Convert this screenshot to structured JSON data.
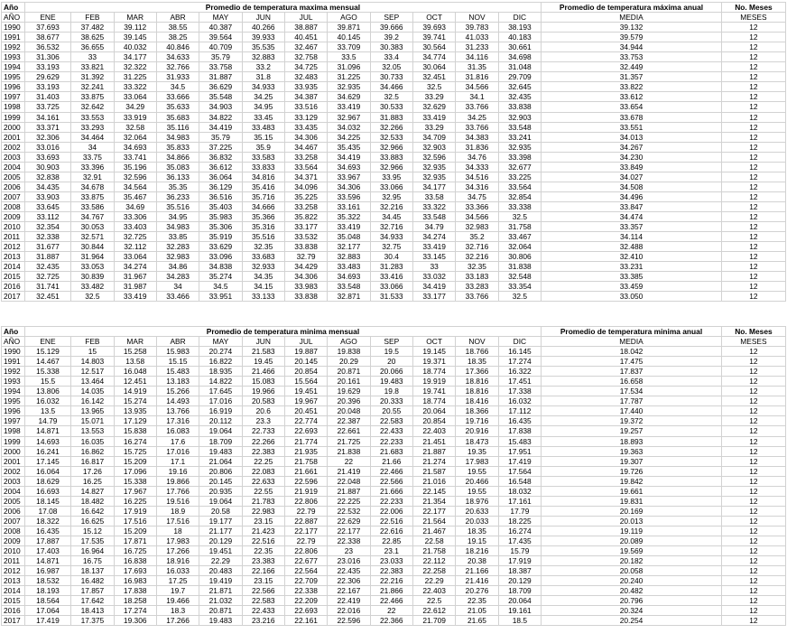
{
  "max": {
    "year_label": "Año",
    "title": "Promedio de temperatura maxima mensual",
    "annual_title": "Promedio de temperatura máxima anual",
    "count_title": "No. Meses",
    "year_col": "AÑO",
    "months": [
      "ENE",
      "FEB",
      "MAR",
      "ABR",
      "MAY",
      "JUN",
      "JUL",
      "AGO",
      "SEP",
      "OCT",
      "NOV",
      "DIC"
    ],
    "media_label": "MEDIA",
    "meses_label": "MESES",
    "rows": [
      [
        "1990",
        "37.693",
        "37.482",
        "39.112",
        "38.55",
        "40.387",
        "40.266",
        "38.887",
        "39.871",
        "39.666",
        "39.693",
        "39.783",
        "38.193",
        "39.132",
        "12"
      ],
      [
        "1991",
        "38.677",
        "38.625",
        "39.145",
        "38.25",
        "39.564",
        "39.933",
        "40.451",
        "40.145",
        "39.2",
        "39.741",
        "41.033",
        "40.183",
        "39.579",
        "12"
      ],
      [
        "1992",
        "36.532",
        "36.655",
        "40.032",
        "40.846",
        "40.709",
        "35.535",
        "32.467",
        "33.709",
        "30.383",
        "30.564",
        "31.233",
        "30.661",
        "34.944",
        "12"
      ],
      [
        "1993",
        "31.306",
        "33",
        "34.177",
        "34.633",
        "35.79",
        "32.883",
        "32.758",
        "33.5",
        "33.4",
        "34.774",
        "34.116",
        "34.698",
        "33.753",
        "12"
      ],
      [
        "1994",
        "33.193",
        "33.821",
        "32.322",
        "32.766",
        "33.758",
        "33.2",
        "34.725",
        "31.096",
        "32.05",
        "30.064",
        "31.35",
        "31.048",
        "32.449",
        "12"
      ],
      [
        "1995",
        "29.629",
        "31.392",
        "31.225",
        "31.933",
        "31.887",
        "31.8",
        "32.483",
        "31.225",
        "30.733",
        "32.451",
        "31.816",
        "29.709",
        "31.357",
        "12"
      ],
      [
        "1996",
        "33.193",
        "32.241",
        "33.322",
        "34.5",
        "36.629",
        "34.933",
        "33.935",
        "32.935",
        "34.466",
        "32.5",
        "34.566",
        "32.645",
        "33.822",
        "12"
      ],
      [
        "1997",
        "31.403",
        "33.875",
        "33.064",
        "33.666",
        "35.548",
        "34.25",
        "34.387",
        "34.629",
        "32.5",
        "33.29",
        "34.1",
        "32.435",
        "33.612",
        "12"
      ],
      [
        "1998",
        "33.725",
        "32.642",
        "34.29",
        "35.633",
        "34.903",
        "34.95",
        "33.516",
        "33.419",
        "30.533",
        "32.629",
        "33.766",
        "33.838",
        "33.654",
        "12"
      ],
      [
        "1999",
        "34.161",
        "33.553",
        "33.919",
        "35.683",
        "34.822",
        "33.45",
        "33.129",
        "32.967",
        "31.883",
        "33.419",
        "34.25",
        "32.903",
        "33.678",
        "12"
      ],
      [
        "2000",
        "33.371",
        "33.293",
        "32.58",
        "35.116",
        "34.419",
        "33.483",
        "33.435",
        "34.032",
        "32.266",
        "33.29",
        "33.766",
        "33.548",
        "33.551",
        "12"
      ],
      [
        "2001",
        "32.306",
        "34.464",
        "32.064",
        "34.983",
        "35.79",
        "35.15",
        "34.306",
        "34.225",
        "32.533",
        "34.709",
        "34.383",
        "33.241",
        "34.013",
        "12"
      ],
      [
        "2002",
        "33.016",
        "34",
        "34.693",
        "35.833",
        "37.225",
        "35.9",
        "34.467",
        "35.435",
        "32.966",
        "32.903",
        "31.836",
        "32.935",
        "34.267",
        "12"
      ],
      [
        "2003",
        "33.693",
        "33.75",
        "33.741",
        "34.866",
        "36.832",
        "33.583",
        "33.258",
        "34.419",
        "33.883",
        "32.596",
        "34.76",
        "33.398",
        "34.230",
        "12"
      ],
      [
        "2004",
        "30.903",
        "33.396",
        "35.196",
        "35.083",
        "36.612",
        "33.833",
        "33.564",
        "34.693",
        "32.966",
        "32.935",
        "34.333",
        "32.677",
        "33.849",
        "12"
      ],
      [
        "2005",
        "32.838",
        "32.91",
        "32.596",
        "36.133",
        "36.064",
        "34.816",
        "34.371",
        "33.967",
        "33.95",
        "32.935",
        "34.516",
        "33.225",
        "34.027",
        "12"
      ],
      [
        "2006",
        "34.435",
        "34.678",
        "34.564",
        "35.35",
        "36.129",
        "35.416",
        "34.096",
        "34.306",
        "33.066",
        "34.177",
        "34.316",
        "33.564",
        "34.508",
        "12"
      ],
      [
        "2007",
        "33.903",
        "33.875",
        "35.467",
        "36.233",
        "36.516",
        "35.716",
        "35.225",
        "33.596",
        "32.95",
        "33.58",
        "34.75",
        "32.854",
        "34.496",
        "12"
      ],
      [
        "2008",
        "33.645",
        "33.586",
        "34.69",
        "35.516",
        "35.403",
        "34.666",
        "33.258",
        "33.161",
        "32.216",
        "33.322",
        "33.366",
        "33.338",
        "33.847",
        "12"
      ],
      [
        "2009",
        "33.112",
        "34.767",
        "33.306",
        "34.95",
        "35.983",
        "35.366",
        "35.822",
        "35.322",
        "34.45",
        "33.548",
        "34.566",
        "32.5",
        "34.474",
        "12"
      ],
      [
        "2010",
        "32.354",
        "30.053",
        "33.403",
        "34.983",
        "35.306",
        "35.316",
        "33.177",
        "33.419",
        "32.716",
        "34.79",
        "32.983",
        "31.758",
        "33.357",
        "12"
      ],
      [
        "2011",
        "32.338",
        "32.571",
        "32.725",
        "33.85",
        "35.919",
        "35.516",
        "33.532",
        "35.048",
        "34.933",
        "34.274",
        "35.2",
        "33.467",
        "34.114",
        "12"
      ],
      [
        "2012",
        "31.677",
        "30.844",
        "32.112",
        "32.283",
        "33.629",
        "32.35",
        "33.838",
        "32.177",
        "32.75",
        "33.419",
        "32.716",
        "32.064",
        "32.488",
        "12"
      ],
      [
        "2013",
        "31.887",
        "31.964",
        "33.064",
        "32.983",
        "33.096",
        "33.683",
        "32.79",
        "32.883",
        "30.4",
        "33.145",
        "32.216",
        "30.806",
        "32.410",
        "12"
      ],
      [
        "2014",
        "32.435",
        "33.053",
        "34.274",
        "34.86",
        "34.838",
        "32.933",
        "34.429",
        "33.483",
        "31.283",
        "33",
        "32.35",
        "31.838",
        "33.231",
        "12"
      ],
      [
        "2015",
        "32.725",
        "30.839",
        "31.967",
        "34.283",
        "35.274",
        "34.35",
        "34.306",
        "34.693",
        "33.416",
        "33.032",
        "33.183",
        "32.548",
        "33.385",
        "12"
      ],
      [
        "2016",
        "31.741",
        "33.482",
        "31.987",
        "34",
        "34.5",
        "34.15",
        "33.983",
        "33.548",
        "33.066",
        "34.419",
        "33.283",
        "33.354",
        "33.459",
        "12"
      ],
      [
        "2017",
        "32.451",
        "32.5",
        "33.419",
        "33.466",
        "33.951",
        "33.133",
        "33.838",
        "32.871",
        "31.533",
        "33.177",
        "33.766",
        "32.5",
        "33.050",
        "12"
      ]
    ]
  },
  "min": {
    "year_label": "Año",
    "title": "Promedio de temperatura minima mensual",
    "annual_title": "Promedio de temperatura minima anual",
    "count_title": "No. Meses",
    "year_col": "AÑO",
    "months": [
      "ENE",
      "FEB",
      "MAR",
      "ABR",
      "MAY",
      "JUN",
      "JUL",
      "AGO",
      "SEP",
      "OCT",
      "NOV",
      "DIC"
    ],
    "media_label": "MEDIA",
    "meses_label": "MESES",
    "rows": [
      [
        "1990",
        "15.129",
        "15",
        "15.258",
        "15.983",
        "20.274",
        "21.583",
        "19.887",
        "19.838",
        "19.5",
        "19.145",
        "18.766",
        "16.145",
        "18.042",
        "12"
      ],
      [
        "1991",
        "14.467",
        "14.803",
        "13.58",
        "15.15",
        "16.822",
        "19.45",
        "20.145",
        "20.29",
        "20",
        "19.371",
        "18.35",
        "17.274",
        "17.475",
        "12"
      ],
      [
        "1992",
        "15.338",
        "12.517",
        "16.048",
        "15.483",
        "18.935",
        "21.466",
        "20.854",
        "20.871",
        "20.066",
        "18.774",
        "17.366",
        "16.322",
        "17.837",
        "12"
      ],
      [
        "1993",
        "15.5",
        "13.464",
        "12.451",
        "13.183",
        "14.822",
        "15.083",
        "15.564",
        "20.161",
        "19.483",
        "19.919",
        "18.816",
        "17.451",
        "16.658",
        "12"
      ],
      [
        "1994",
        "13.806",
        "14.035",
        "14.919",
        "15.266",
        "17.645",
        "19.966",
        "19.451",
        "19.629",
        "19.8",
        "19.741",
        "18.816",
        "17.338",
        "17.534",
        "12"
      ],
      [
        "1995",
        "16.032",
        "16.142",
        "15.274",
        "14.493",
        "17.016",
        "20.583",
        "19.967",
        "20.396",
        "20.333",
        "18.774",
        "18.416",
        "16.032",
        "17.787",
        "12"
      ],
      [
        "1996",
        "13.5",
        "13.965",
        "13.935",
        "13.766",
        "16.919",
        "20.6",
        "20.451",
        "20.048",
        "20.55",
        "20.064",
        "18.366",
        "17.112",
        "17.440",
        "12"
      ],
      [
        "1997",
        "14.79",
        "15.071",
        "17.129",
        "17.316",
        "20.112",
        "23.3",
        "22.774",
        "22.387",
        "22.583",
        "20.854",
        "19.716",
        "16.435",
        "19.372",
        "12"
      ],
      [
        "1998",
        "14.871",
        "13.553",
        "15.838",
        "16.083",
        "19.064",
        "22.733",
        "22.693",
        "22.661",
        "22.433",
        "22.403",
        "20.916",
        "17.838",
        "19.257",
        "12"
      ],
      [
        "1999",
        "14.693",
        "16.035",
        "16.274",
        "17.6",
        "18.709",
        "22.266",
        "21.774",
        "21.725",
        "22.233",
        "21.451",
        "18.473",
        "15.483",
        "18.893",
        "12"
      ],
      [
        "2000",
        "16.241",
        "16.862",
        "15.725",
        "17.016",
        "19.483",
        "22.383",
        "21.935",
        "21.838",
        "21.683",
        "21.887",
        "19.35",
        "17.951",
        "19.363",
        "12"
      ],
      [
        "2001",
        "17.145",
        "16.817",
        "15.209",
        "17.1",
        "21.064",
        "22.25",
        "21.758",
        "22",
        "21.66",
        "21.274",
        "17.983",
        "17.419",
        "19.307",
        "12"
      ],
      [
        "2002",
        "16.064",
        "17.26",
        "17.096",
        "19.16",
        "20.806",
        "22.083",
        "21.661",
        "21.419",
        "22.466",
        "21.587",
        "19.55",
        "17.564",
        "19.726",
        "12"
      ],
      [
        "2003",
        "18.629",
        "16.25",
        "15.338",
        "19.866",
        "20.145",
        "22.633",
        "22.596",
        "22.048",
        "22.566",
        "21.016",
        "20.466",
        "16.548",
        "19.842",
        "12"
      ],
      [
        "2004",
        "16.693",
        "14.827",
        "17.967",
        "17.766",
        "20.935",
        "22.55",
        "21.919",
        "21.887",
        "21.666",
        "22.145",
        "19.55",
        "18.032",
        "19.661",
        "12"
      ],
      [
        "2005",
        "18.145",
        "18.482",
        "16.225",
        "19.516",
        "19.064",
        "21.783",
        "22.806",
        "22.225",
        "22.233",
        "21.354",
        "18.976",
        "17.161",
        "19.831",
        "12"
      ],
      [
        "2006",
        "17.08",
        "16.642",
        "17.919",
        "18.9",
        "20.58",
        "22.983",
        "22.79",
        "22.532",
        "22.006",
        "22.177",
        "20.633",
        "17.79",
        "20.169",
        "12"
      ],
      [
        "2007",
        "18.322",
        "16.625",
        "17.516",
        "17.516",
        "19.177",
        "23.15",
        "22.887",
        "22.629",
        "22.516",
        "21.564",
        "20.033",
        "18.225",
        "20.013",
        "12"
      ],
      [
        "2008",
        "16.435",
        "15.12",
        "15.209",
        "18",
        "21.177",
        "21.423",
        "22.177",
        "22.177",
        "22.616",
        "21.467",
        "18.35",
        "16.274",
        "19.119",
        "12"
      ],
      [
        "2009",
        "17.887",
        "17.535",
        "17.871",
        "17.983",
        "20.129",
        "22.516",
        "22.79",
        "22.338",
        "22.85",
        "22.58",
        "19.15",
        "17.435",
        "20.089",
        "12"
      ],
      [
        "2010",
        "17.403",
        "16.964",
        "16.725",
        "17.266",
        "19.451",
        "22.35",
        "22.806",
        "23",
        "23.1",
        "21.758",
        "18.216",
        "15.79",
        "19.569",
        "12"
      ],
      [
        "2011",
        "14.871",
        "16.75",
        "16.838",
        "18.916",
        "22.29",
        "23.383",
        "22.677",
        "23.016",
        "23.033",
        "22.112",
        "20.38",
        "17.919",
        "20.182",
        "12"
      ],
      [
        "2012",
        "16.987",
        "18.137",
        "17.693",
        "16.033",
        "20.483",
        "22.166",
        "22.564",
        "22.435",
        "22.383",
        "22.258",
        "21.166",
        "18.387",
        "20.058",
        "12"
      ],
      [
        "2013",
        "18.532",
        "16.482",
        "16.983",
        "17.25",
        "19.419",
        "23.15",
        "22.709",
        "22.306",
        "22.216",
        "22.29",
        "21.416",
        "20.129",
        "20.240",
        "12"
      ],
      [
        "2014",
        "18.193",
        "17.857",
        "17.838",
        "19.7",
        "21.871",
        "22.566",
        "22.338",
        "22.167",
        "21.866",
        "22.403",
        "20.276",
        "18.709",
        "20.482",
        "12"
      ],
      [
        "2015",
        "18.564",
        "17.642",
        "18.258",
        "19.466",
        "21.032",
        "22.583",
        "22.209",
        "22.419",
        "22.466",
        "22.5",
        "22.35",
        "20.064",
        "20.796",
        "12"
      ],
      [
        "2016",
        "17.064",
        "18.413",
        "17.274",
        "18.3",
        "20.871",
        "22.433",
        "22.693",
        "22.016",
        "22",
        "22.612",
        "21.05",
        "19.161",
        "20.324",
        "12"
      ],
      [
        "2017",
        "17.419",
        "17.375",
        "19.306",
        "17.266",
        "19.483",
        "23.216",
        "22.161",
        "22.596",
        "22.366",
        "21.709",
        "21.65",
        "18.5",
        "20.254",
        "12"
      ]
    ]
  }
}
